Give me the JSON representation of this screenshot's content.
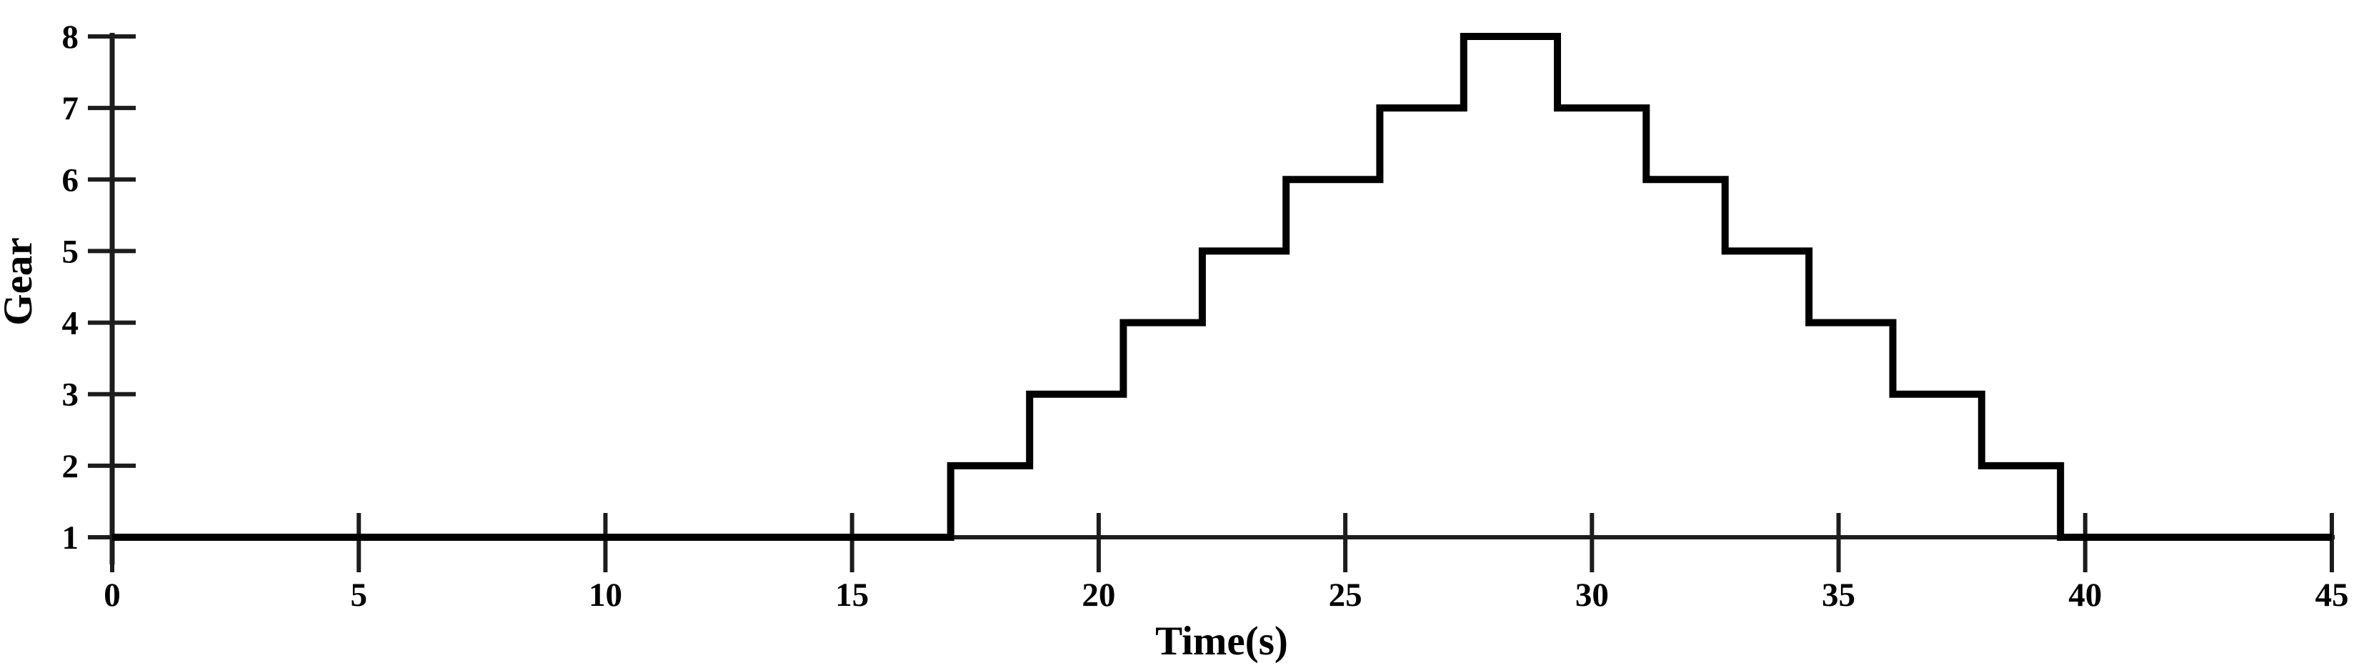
{
  "chart_data": {
    "type": "line",
    "line_style": "step",
    "title": "",
    "xlabel": "Time(s)",
    "ylabel": "Gear",
    "xlim": [
      0,
      45
    ],
    "ylim": [
      1,
      8
    ],
    "xticks": [
      0,
      5,
      10,
      15,
      20,
      25,
      30,
      35,
      40,
      45
    ],
    "yticks": [
      1,
      2,
      3,
      4,
      5,
      6,
      7,
      8
    ],
    "grid": false,
    "legend": "none",
    "background": "#ffffff",
    "axis_color": "#1c1c1c",
    "text_color": "#000000",
    "series": [
      {
        "name": "Gear",
        "color": "#000000",
        "steps": [
          {
            "t": 0.0,
            "gear": 1
          },
          {
            "t": 17.0,
            "gear": 2
          },
          {
            "t": 18.6,
            "gear": 3
          },
          {
            "t": 20.5,
            "gear": 4
          },
          {
            "t": 22.1,
            "gear": 5
          },
          {
            "t": 23.8,
            "gear": 6
          },
          {
            "t": 25.7,
            "gear": 7
          },
          {
            "t": 27.4,
            "gear": 8
          },
          {
            "t": 29.3,
            "gear": 7
          },
          {
            "t": 31.1,
            "gear": 6
          },
          {
            "t": 32.7,
            "gear": 5
          },
          {
            "t": 34.4,
            "gear": 4
          },
          {
            "t": 36.1,
            "gear": 3
          },
          {
            "t": 37.9,
            "gear": 2
          },
          {
            "t": 39.5,
            "gear": 1
          },
          {
            "t": 45.0,
            "gear": 1
          }
        ]
      }
    ]
  }
}
